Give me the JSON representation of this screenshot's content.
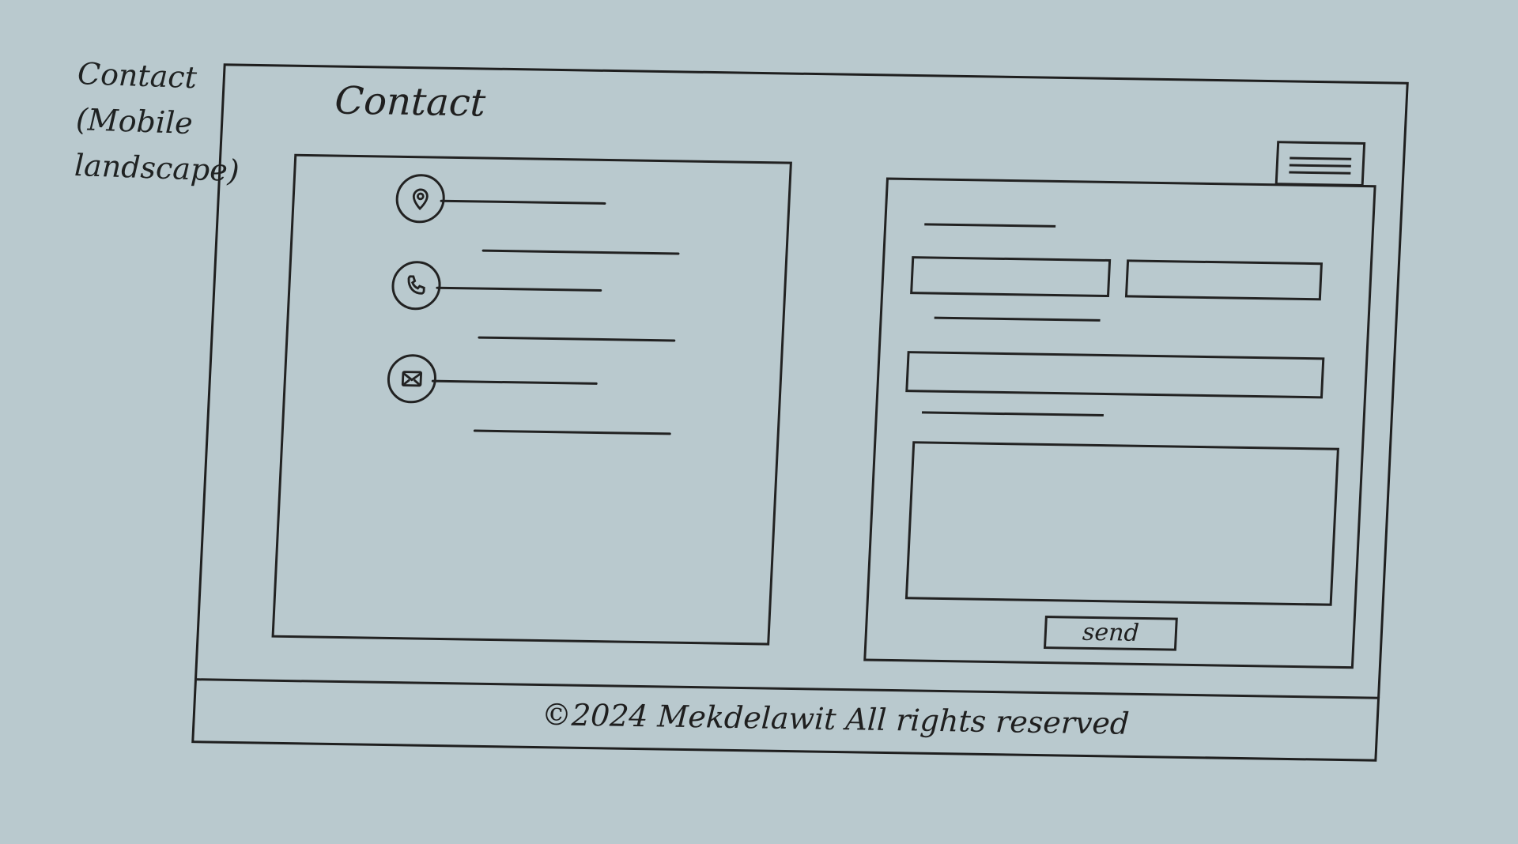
{
  "note": {
    "line1": "Contact",
    "line2": "(Mobile",
    "line3": "landscape)"
  },
  "header": {
    "title": "Contact",
    "menu_icon": "hamburger-icon"
  },
  "contact_info": {
    "items": [
      {
        "icon": "location-pin-icon"
      },
      {
        "icon": "phone-icon"
      },
      {
        "icon": "mail-icon"
      }
    ]
  },
  "form": {
    "send_label": "send"
  },
  "footer": {
    "text": "©2024 Mekdelawit All rights reserved"
  }
}
